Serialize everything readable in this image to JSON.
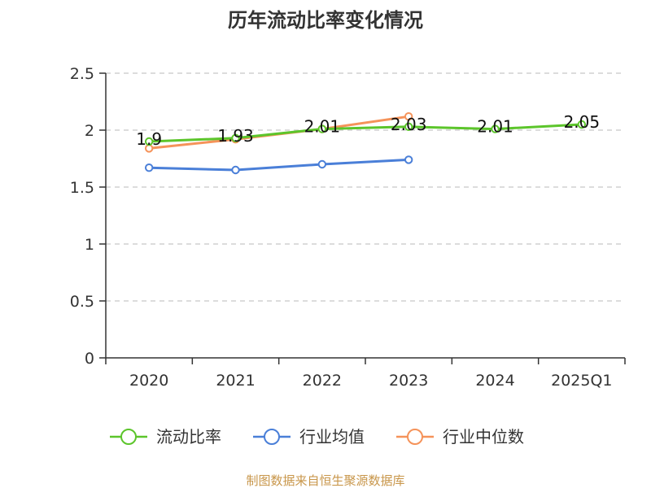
{
  "chart_data": {
    "type": "line",
    "title": "历年流动比率变化情况",
    "categories": [
      "2020",
      "2021",
      "2022",
      "2023",
      "2024",
      "2025Q1"
    ],
    "ylim": [
      0,
      2.5
    ],
    "yticks": [
      "0",
      "0.5",
      "1",
      "1.5",
      "2",
      "2.5"
    ],
    "grid": true,
    "legend_position": "bottom",
    "series": [
      {
        "name": "流动比率",
        "color": "#5cc52b",
        "values": [
          1.9,
          1.93,
          2.01,
          2.03,
          2.01,
          2.05
        ],
        "labels": [
          "1.9",
          "1.93",
          "2.01",
          "2.03",
          "2.01",
          "2.05"
        ]
      },
      {
        "name": "行业均值",
        "color": "#4a7fd8",
        "values": [
          1.67,
          1.65,
          1.7,
          1.74,
          null,
          null
        ]
      },
      {
        "name": "行业中位数",
        "color": "#f5935a",
        "values": [
          1.84,
          1.92,
          2.01,
          2.12,
          null,
          null
        ]
      }
    ],
    "source": "制图数据来自恒生聚源数据库"
  }
}
